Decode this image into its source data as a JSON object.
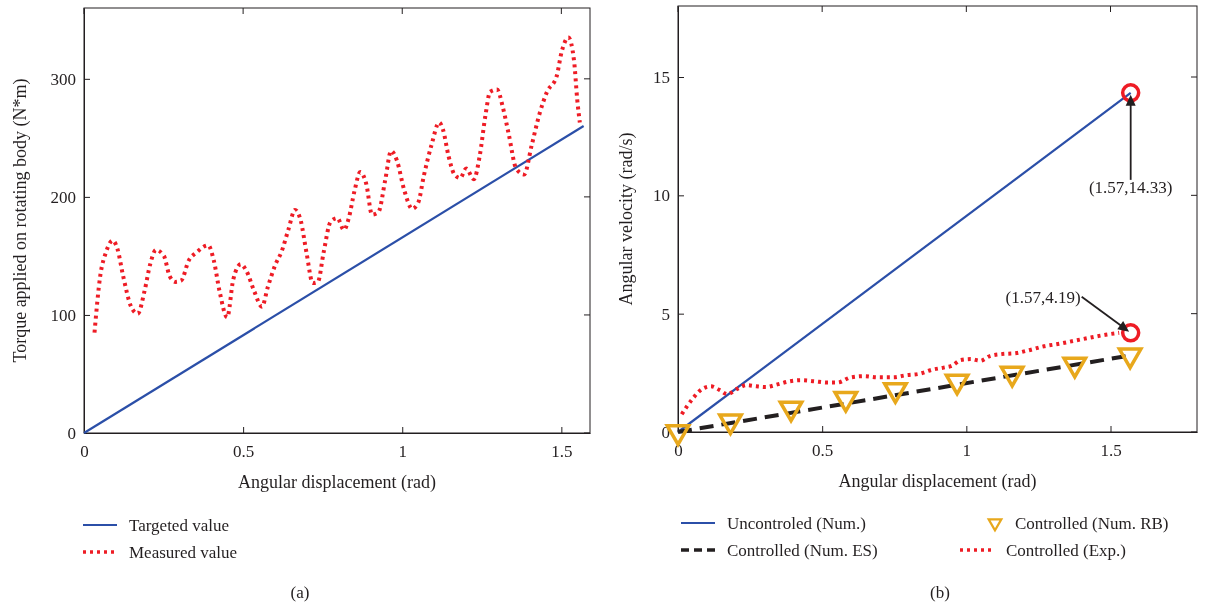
{
  "chart_data": [
    {
      "type": "line",
      "xlabel": "Angular displacement (rad)",
      "ylabel": "Torque applied on rotating body (N*m)",
      "xlim": [
        0,
        1.59
      ],
      "ylim": [
        0,
        360
      ],
      "xticks": [
        0,
        0.5,
        1,
        1.5
      ],
      "yticks": [
        0,
        100,
        200,
        300
      ],
      "grid": false,
      "legend": "bottom",
      "annotations": [
        "(a)"
      ],
      "series": [
        {
          "name": "Targeted value",
          "color": "#2b4fa8",
          "line_style": "solid",
          "x": [
            0,
            1.57
          ],
          "values": [
            0,
            260
          ]
        },
        {
          "name": "Measured value",
          "color": "#ee1c25",
          "line_style": "dotted",
          "x": [
            0.033,
            0.051,
            0.069,
            0.09,
            0.105,
            0.123,
            0.148,
            0.169,
            0.19,
            0.208,
            0.226,
            0.251,
            0.269,
            0.287,
            0.305,
            0.329,
            0.354,
            0.39,
            0.408,
            0.426,
            0.45,
            0.469,
            0.493,
            0.511,
            0.535,
            0.559,
            0.578,
            0.602,
            0.62,
            0.642,
            0.663,
            0.681,
            0.699,
            0.719,
            0.735,
            0.753,
            0.775,
            0.796,
            0.817,
            0.832,
            0.85,
            0.868,
            0.887,
            0.905,
            0.925,
            0.947,
            0.965,
            0.983,
            1.007,
            1.031,
            1.05,
            1.068,
            1.092,
            1.116,
            1.128,
            1.146,
            1.164,
            1.182,
            1.201,
            1.225,
            1.243,
            1.262,
            1.276,
            1.298,
            1.316,
            1.334,
            1.358,
            1.383,
            1.407,
            1.431,
            1.455,
            1.485,
            1.501,
            1.522,
            1.54,
            1.55,
            1.558
          ],
          "values": [
            85,
            133,
            153,
            163,
            156,
            133,
            107,
            101,
            120,
            143,
            155,
            150,
            133,
            128,
            129,
            146,
            153,
            159,
            146,
            120,
            98,
            130,
            143,
            137,
            120,
            107,
            124,
            143,
            153,
            172,
            189,
            180,
            153,
            127,
            128,
            153,
            179,
            182,
            172,
            182,
            205,
            221,
            211,
            185,
            187,
            215,
            239,
            231,
            205,
            190,
            195,
            218,
            244,
            263,
            257,
            234,
            219,
            216,
            224,
            215,
            234,
            270,
            289,
            291,
            276,
            254,
            224,
            219,
            244,
            270,
            289,
            302,
            323,
            335,
            315,
            282,
            263
          ]
        }
      ]
    },
    {
      "type": "line",
      "xlabel": "Angular displacement (rad)",
      "ylabel": "Angular velocity (rad/s)",
      "xlim": [
        0,
        1.8
      ],
      "ylim": [
        0,
        18
      ],
      "xticks": [
        0,
        0.5,
        1,
        1.5
      ],
      "yticks": [
        0,
        5,
        10,
        15
      ],
      "grid": false,
      "legend": "bottom",
      "annotations": [
        {
          "text": "(1.57,14.33)",
          "x": 1.57,
          "y": 14.33
        },
        {
          "text": "(1.57,4.19)",
          "x": 1.57,
          "y": 4.19
        },
        "(b)"
      ],
      "series": [
        {
          "name": "Uncontroled (Num.)",
          "color": "#2b4fa8",
          "line_style": "solid",
          "x": [
            0,
            1.57
          ],
          "values": [
            0,
            14.33
          ]
        },
        {
          "name": "Controlled (Num. ES)",
          "color": "#231f20",
          "line_style": "dashed",
          "x": [
            0,
            1.57
          ],
          "values": [
            0,
            3.24
          ]
        },
        {
          "name": "Controlled (Num. RB)",
          "type": "scatter",
          "marker": "triangle",
          "color": "#e8a81c",
          "x": [
            0,
            0.182,
            0.392,
            0.582,
            0.754,
            0.968,
            1.159,
            1.376,
            1.568
          ],
          "values": [
            0,
            0.46,
            1.0,
            1.41,
            1.78,
            2.14,
            2.47,
            2.85,
            3.24
          ]
        },
        {
          "name": "Controlled (Exp.)",
          "color": "#ee1c25",
          "line_style": "dotted",
          "x": [
            0.013,
            0.051,
            0.084,
            0.114,
            0.145,
            0.171,
            0.205,
            0.238,
            0.272,
            0.305,
            0.345,
            0.386,
            0.426,
            0.473,
            0.519,
            0.553,
            0.6,
            0.647,
            0.693,
            0.747,
            0.787,
            0.841,
            0.881,
            0.921,
            0.95,
            0.981,
            1.015,
            1.048,
            1.082,
            1.122,
            1.175,
            1.215,
            1.269,
            1.323,
            1.376,
            1.43,
            1.483,
            1.53
          ],
          "values": [
            0.75,
            1.41,
            1.82,
            1.93,
            1.77,
            1.6,
            1.82,
            1.98,
            1.93,
            1.9,
            2.01,
            2.14,
            2.19,
            2.14,
            2.09,
            2.09,
            2.31,
            2.36,
            2.31,
            2.31,
            2.39,
            2.47,
            2.63,
            2.72,
            2.8,
            3.04,
            3.08,
            3.01,
            3.21,
            3.29,
            3.34,
            3.45,
            3.62,
            3.73,
            3.86,
            3.99,
            4.11,
            4.19
          ]
        }
      ]
    }
  ]
}
